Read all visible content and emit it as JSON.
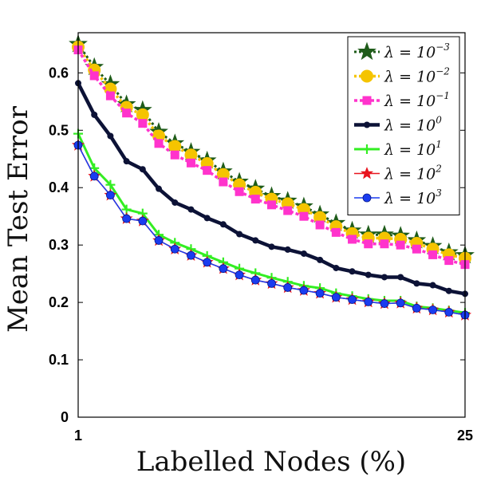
{
  "chart_data": {
    "type": "line",
    "xlabel": "Labelled Nodes (%)",
    "ylabel": "Mean Test Error",
    "xlim": [
      1,
      25
    ],
    "ylim": [
      0,
      0.67
    ],
    "xticks": [
      "1",
      "25"
    ],
    "yticks": [
      "0",
      "0.1",
      "0.2",
      "0.3",
      "0.4",
      "0.5",
      "0.6"
    ],
    "grid": false,
    "legend_position": "top-right",
    "x": [
      1,
      2,
      3,
      4,
      5,
      6,
      7,
      8,
      9,
      10,
      11,
      12,
      13,
      14,
      15,
      16,
      17,
      18,
      19,
      20,
      21,
      22,
      23,
      24,
      25
    ],
    "series": [
      {
        "name": "λ = 10^-3",
        "legend_base": "λ = 10",
        "legend_exp": "−3",
        "color": "#1f5c1a",
        "marker": "star-large",
        "values": [
          0.65,
          0.61,
          0.58,
          0.545,
          0.535,
          0.497,
          0.477,
          0.462,
          0.447,
          0.428,
          0.41,
          0.398,
          0.385,
          0.377,
          0.367,
          0.353,
          0.338,
          0.325,
          0.318,
          0.318,
          0.316,
          0.308,
          0.298,
          0.287,
          0.282
        ]
      },
      {
        "name": "λ = 10^-2",
        "legend_base": "λ = 10",
        "legend_exp": "−2",
        "color": "#f5c400",
        "marker": "circle-large",
        "values": [
          0.645,
          0.605,
          0.572,
          0.54,
          0.527,
          0.49,
          0.472,
          0.457,
          0.442,
          0.423,
          0.405,
          0.392,
          0.38,
          0.372,
          0.362,
          0.348,
          0.332,
          0.32,
          0.312,
          0.312,
          0.31,
          0.303,
          0.293,
          0.283,
          0.277
        ]
      },
      {
        "name": "λ = 10^-1",
        "legend_base": "λ = 10",
        "legend_exp": "−1",
        "color": "#ff33cc",
        "marker": "square",
        "values": [
          0.64,
          0.595,
          0.56,
          0.53,
          0.512,
          0.477,
          0.457,
          0.443,
          0.43,
          0.41,
          0.393,
          0.38,
          0.37,
          0.36,
          0.35,
          0.335,
          0.322,
          0.31,
          0.302,
          0.302,
          0.3,
          0.293,
          0.283,
          0.273,
          0.266
        ]
      },
      {
        "name": "λ = 10^0",
        "legend_base": "λ = 10",
        "legend_exp": "0",
        "color": "#0c1236",
        "marker": "dot",
        "values": [
          0.582,
          0.527,
          0.49,
          0.446,
          0.432,
          0.398,
          0.374,
          0.362,
          0.347,
          0.336,
          0.319,
          0.308,
          0.297,
          0.292,
          0.285,
          0.274,
          0.26,
          0.254,
          0.248,
          0.244,
          0.244,
          0.233,
          0.23,
          0.22,
          0.215
        ]
      },
      {
        "name": "λ = 10^1",
        "legend_base": "λ = 10",
        "legend_exp": "1",
        "color": "#33ee22",
        "marker": "plus",
        "values": [
          0.494,
          0.434,
          0.405,
          0.362,
          0.355,
          0.318,
          0.304,
          0.293,
          0.281,
          0.27,
          0.259,
          0.251,
          0.243,
          0.236,
          0.229,
          0.225,
          0.216,
          0.211,
          0.206,
          0.203,
          0.203,
          0.193,
          0.19,
          0.186,
          0.182
        ]
      },
      {
        "name": "λ = 10^2",
        "legend_base": "λ = 10",
        "legend_exp": "2",
        "color": "#e8141e",
        "marker": "star-small",
        "values": [
          0.474,
          0.42,
          0.387,
          0.346,
          0.342,
          0.308,
          0.293,
          0.282,
          0.27,
          0.259,
          0.248,
          0.239,
          0.233,
          0.226,
          0.221,
          0.216,
          0.209,
          0.205,
          0.201,
          0.198,
          0.199,
          0.19,
          0.187,
          0.183,
          0.178
        ]
      },
      {
        "name": "λ = 10^3",
        "legend_base": "λ = 10",
        "legend_exp": "3",
        "color": "#1a3cf0",
        "marker": "circle",
        "values": [
          0.474,
          0.42,
          0.387,
          0.346,
          0.342,
          0.308,
          0.293,
          0.282,
          0.27,
          0.259,
          0.248,
          0.239,
          0.233,
          0.226,
          0.221,
          0.216,
          0.209,
          0.205,
          0.201,
          0.198,
          0.199,
          0.19,
          0.187,
          0.183,
          0.178
        ]
      }
    ]
  }
}
